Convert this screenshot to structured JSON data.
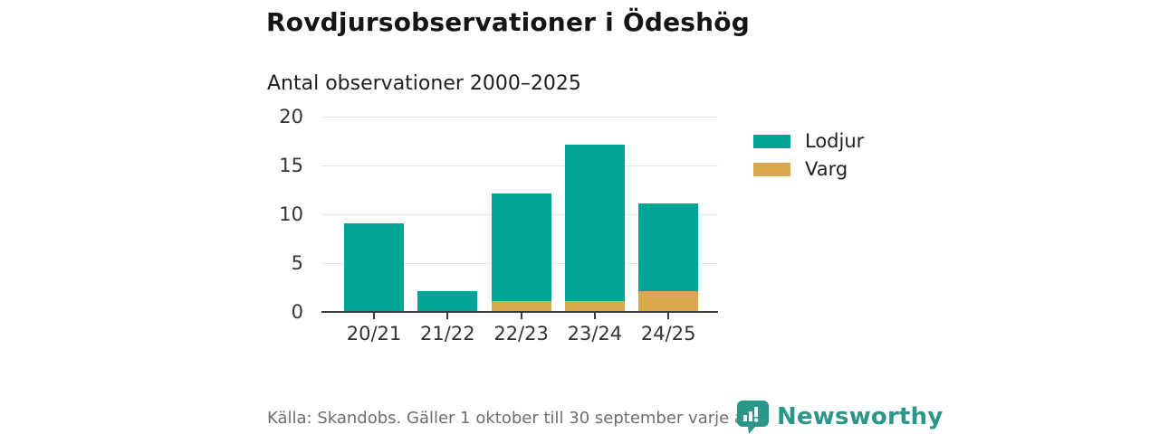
{
  "header": {
    "title": "Rovdjursobservationer i Ödeshög",
    "subtitle": "Antal observationer 2000–2025"
  },
  "chart_data": {
    "type": "bar",
    "stacked": true,
    "title": "Rovdjursobservationer i Ödeshög",
    "subtitle": "Antal observationer 2000–2025",
    "categories": [
      "20/21",
      "21/22",
      "22/23",
      "23/24",
      "24/25"
    ],
    "series": [
      {
        "name": "Lodjur",
        "color": "#00a496",
        "values": [
          9,
          2,
          11,
          16,
          9
        ]
      },
      {
        "name": "Varg",
        "color": "#d9a84f",
        "values": [
          0,
          0,
          1,
          1,
          2
        ]
      }
    ],
    "totals": [
      9,
      2,
      12,
      17,
      11
    ],
    "xlabel": "",
    "ylabel": "",
    "ylim": [
      0,
      20
    ],
    "yticks": [
      0,
      5,
      10,
      15,
      20
    ],
    "grid": true,
    "legend_position": "right"
  },
  "legend": {
    "items": [
      {
        "label": "Lodjur",
        "color": "#00a496"
      },
      {
        "label": "Varg",
        "color": "#d9a84f"
      }
    ]
  },
  "footer": {
    "source": "Källa: Skandobs. Gäller 1 oktober till 30 september varje år.",
    "brand": "Newsworthy",
    "brand_color": "#2b968a"
  },
  "colors": {
    "lodjur": "#00a496",
    "varg": "#d9a84f",
    "gridline": "#e3e3e3",
    "axis": "#3b3b3b",
    "axis_text": "#333333",
    "source_text": "#6e6e6e"
  }
}
